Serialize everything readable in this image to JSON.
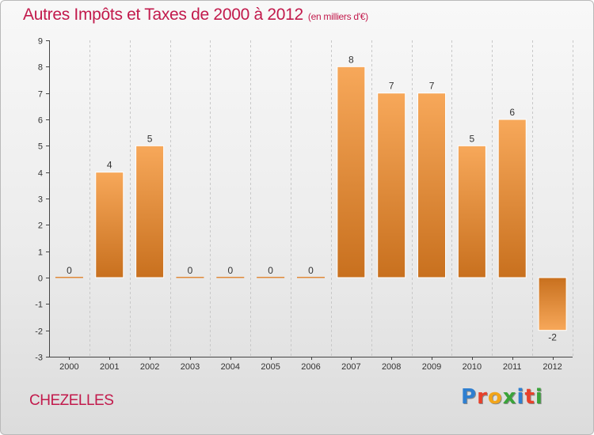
{
  "title": "Autres Impôts et Taxes de 2000 à 2012",
  "unit_label": "(en milliers d'€)",
  "place_name": "CHEZELLES",
  "brand": {
    "letters": [
      "P",
      "r",
      "o",
      "x",
      "i",
      "t",
      "i"
    ],
    "colors": [
      "#2f7fd0",
      "#e8412b",
      "#f2a51a",
      "#3aa33a",
      "#2f7fd0",
      "#e8412b",
      "#3aa33a"
    ]
  },
  "colors": {
    "title": "#c21a4c",
    "bar_light": "#f7a85a",
    "bar_dark": "#c8701e",
    "axis": "#444444"
  },
  "chart_data": {
    "type": "bar",
    "categories": [
      "2000",
      "2001",
      "2002",
      "2003",
      "2004",
      "2005",
      "2006",
      "2007",
      "2008",
      "2009",
      "2010",
      "2011",
      "2012"
    ],
    "values": [
      0,
      4,
      5,
      0,
      0,
      0,
      0,
      8,
      7,
      7,
      5,
      6,
      -2
    ],
    "data_labels": [
      "0",
      "4",
      "5",
      "0",
      "0",
      "0",
      "0",
      "8",
      "7",
      "7",
      "5",
      "6",
      "-2"
    ],
    "y_ticks": [
      "-3",
      "-2",
      "-1",
      "0",
      "1",
      "2",
      "3",
      "4",
      "5",
      "6",
      "7",
      "8",
      "9"
    ],
    "ylim": [
      -3,
      9
    ],
    "grid": "vertical-dashed",
    "legend": "none"
  }
}
